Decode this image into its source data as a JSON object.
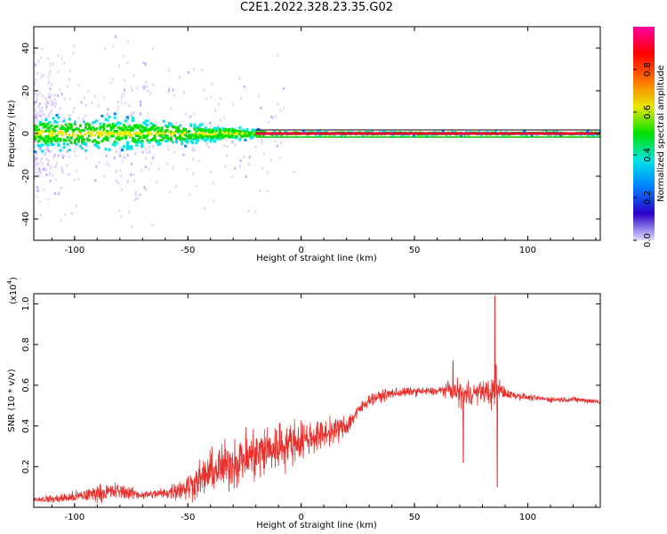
{
  "title": "C2E1.2022.328.23.35.G02",
  "chart_data": [
    {
      "type": "heatmap",
      "xlabel": "Height of straight line (km)",
      "ylabel": "Frequency (Hz)",
      "xlim": [
        -118,
        132
      ],
      "ylim": [
        -50,
        50
      ],
      "xticks": [
        -100,
        -50,
        0,
        50,
        100
      ],
      "yticks": [
        -40,
        -20,
        0,
        20,
        40
      ],
      "colorbar": {
        "label": "Normalized spectral amplitude",
        "range": [
          0,
          1
        ],
        "ticks": [
          0.0,
          0.2,
          0.4,
          0.6,
          0.8
        ],
        "colors": [
          "#e0e0ff",
          "#2a00c8",
          "#0080ff",
          "#00e5e5",
          "#00e000",
          "#e8e800",
          "#ff7000",
          "#ff0000",
          "#ff00a0"
        ]
      },
      "main_line": {
        "frequency": 0,
        "from_height": -20,
        "to_height": 132,
        "color": "#e8003a"
      },
      "spread_profile": [
        {
          "x": -118,
          "halfwidth_hz": 10
        },
        {
          "x": -80,
          "halfwidth_hz": 9
        },
        {
          "x": -60,
          "halfwidth_hz": 7
        },
        {
          "x": -40,
          "halfwidth_hz": 5
        },
        {
          "x": -25,
          "halfwidth_hz": 3
        },
        {
          "x": -15,
          "halfwidth_hz": 1.5
        },
        {
          "x": 0,
          "halfwidth_hz": 1
        },
        {
          "x": 132,
          "halfwidth_hz": 1
        }
      ]
    },
    {
      "type": "line",
      "xlabel": "Height of straight line (km)",
      "ylabel": "SNR (10 * v/v)",
      "scale_label": "(x10",
      "scale_exponent": "4",
      "xlim": [
        -118,
        132
      ],
      "ylim": [
        0,
        1.05
      ],
      "xticks": [
        -100,
        -50,
        0,
        50,
        100
      ],
      "yticks": [
        0.2,
        0.4,
        0.6,
        0.8,
        1.0
      ],
      "color": "#e8302c",
      "series": [
        {
          "x": [
            -118,
            -110,
            -100,
            -90,
            -80,
            -70,
            -60,
            -50,
            -40,
            -30,
            -20,
            -10,
            0,
            10,
            20,
            25,
            30,
            40,
            50,
            60,
            65,
            70,
            72,
            75,
            80,
            85,
            86,
            88,
            90,
            95,
            100,
            110,
            120,
            132
          ],
          "values": [
            0.04,
            0.04,
            0.05,
            0.07,
            0.08,
            0.06,
            0.07,
            0.1,
            0.17,
            0.22,
            0.26,
            0.3,
            0.33,
            0.36,
            0.4,
            0.47,
            0.53,
            0.56,
            0.57,
            0.57,
            0.58,
            0.56,
            0.55,
            0.56,
            0.57,
            0.56,
            0.57,
            0.58,
            0.56,
            0.55,
            0.54,
            0.53,
            0.53,
            0.52
          ],
          "noise": [
            0.02,
            0.03,
            0.04,
            0.06,
            0.06,
            0.03,
            0.04,
            0.1,
            0.15,
            0.18,
            0.2,
            0.18,
            0.14,
            0.1,
            0.08,
            0.05,
            0.04,
            0.04,
            0.03,
            0.03,
            0.05,
            0.1,
            0.1,
            0.08,
            0.07,
            0.12,
            0.12,
            0.06,
            0.04,
            0.03,
            0.02,
            0.02,
            0.02,
            0.02
          ]
        }
      ],
      "peaks": [
        {
          "x": 71.5,
          "y": 0.22
        },
        {
          "x": 85.5,
          "y": 1.04
        },
        {
          "x": 86.5,
          "y": 0.1
        },
        {
          "x": 86,
          "y": 0.7
        },
        {
          "x": 67,
          "y": 0.72
        }
      ]
    }
  ]
}
